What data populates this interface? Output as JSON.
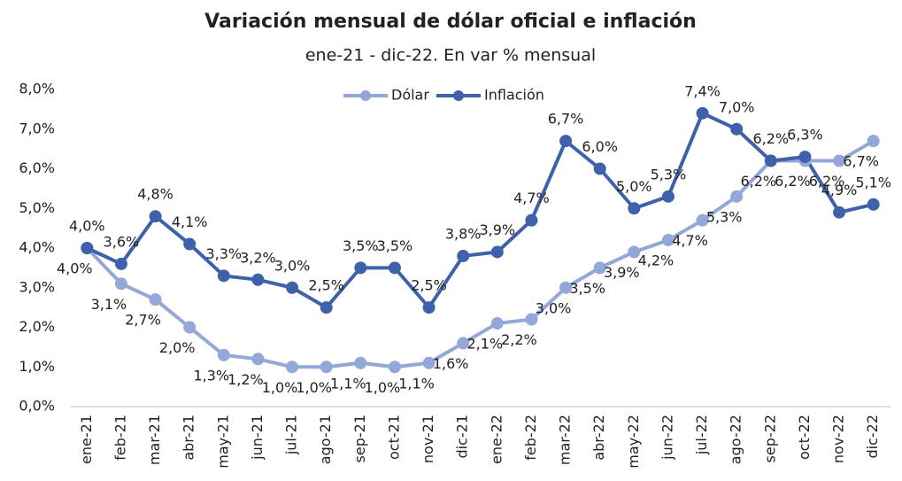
{
  "chart_data": {
    "type": "line",
    "title": "Variación mensual de dólar oficial e inflación",
    "subtitle": "ene-21 - dic-22. En var % mensual",
    "categories": [
      "ene-21",
      "feb-21",
      "mar-21",
      "abr-21",
      "may-21",
      "jun-21",
      "jul-21",
      "ago-21",
      "sep-21",
      "oct-21",
      "nov-21",
      "dic-21",
      "ene-22",
      "feb-22",
      "mar-22",
      "abr-22",
      "may-22",
      "jun-22",
      "jul-22",
      "ago-22",
      "sep-22",
      "oct-22",
      "nov-22",
      "dic-22"
    ],
    "series": [
      {
        "name": "Dólar",
        "color": "#93a8d8",
        "values": [
          4.0,
          3.1,
          2.7,
          2.0,
          1.3,
          1.2,
          1.0,
          1.0,
          1.1,
          1.0,
          1.1,
          1.6,
          2.1,
          2.2,
          3.0,
          3.5,
          3.9,
          4.2,
          4.7,
          5.3,
          6.2,
          6.2,
          6.2,
          6.7
        ],
        "value_labels": [
          "4,0%",
          "3,1%",
          "2,7%",
          "2,0%",
          "1,3%",
          "1,2%",
          "1,0%",
          "1,0%",
          "1,1%",
          "1,0%",
          "1,1%",
          "1,6%",
          "2,1%",
          "2,2%",
          "3,0%",
          "3,5%",
          "3,9%",
          "4,2%",
          "4,7%",
          "5,3%",
          "6,2%",
          "6,2%",
          "6,2%",
          "6,7%"
        ]
      },
      {
        "name": "Inflación",
        "color": "#3f61aa",
        "values": [
          4.0,
          3.6,
          4.8,
          4.1,
          3.3,
          3.2,
          3.0,
          2.5,
          3.5,
          3.5,
          2.5,
          3.8,
          3.9,
          4.7,
          6.7,
          6.0,
          5.0,
          5.3,
          7.4,
          7.0,
          6.2,
          6.3,
          4.9,
          5.1
        ],
        "value_labels": [
          "4,0%",
          "3,6%",
          "4,8%",
          "4,1%",
          "3,3%",
          "3,2%",
          "3,0%",
          "2,5%",
          "3,5%",
          "3,5%",
          "2,5%",
          "3,8%",
          "3,9%",
          "4,7%",
          "6,7%",
          "6,0%",
          "5,0%",
          "5,3%",
          "7,4%",
          "7,0%",
          "6,2%",
          "6,3%",
          "4,9%",
          "5,1%"
        ]
      }
    ],
    "ylim": [
      0,
      8
    ],
    "yticks": [
      {
        "value": 0,
        "label": "0,0%"
      },
      {
        "value": 1,
        "label": "1,0%"
      },
      {
        "value": 2,
        "label": "2,0%"
      },
      {
        "value": 3,
        "label": "3,0%"
      },
      {
        "value": 4,
        "label": "4,0%"
      },
      {
        "value": 5,
        "label": "5,0%"
      },
      {
        "value": 6,
        "label": "6,0%"
      },
      {
        "value": 7,
        "label": "7,0%"
      },
      {
        "value": 8,
        "label": "8,0%"
      }
    ],
    "grid": false
  }
}
